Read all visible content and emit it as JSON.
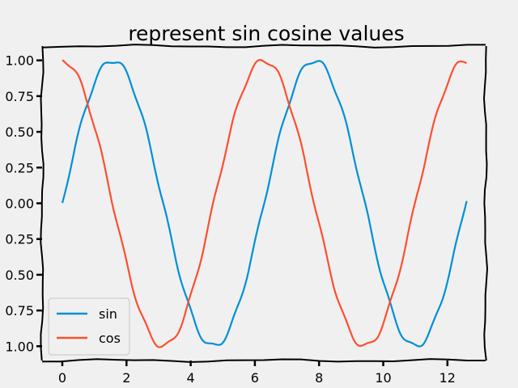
{
  "chart_data": {
    "type": "line",
    "title": "represent sin cosine values",
    "xlabel": "",
    "ylabel": "",
    "xlim": [
      -0.63,
      13.19
    ],
    "ylim": [
      -1.1,
      1.1
    ],
    "x_ticks": [
      "0",
      "2",
      "4",
      "6",
      "8",
      "10",
      "12"
    ],
    "y_ticks": [
      "1.00",
      "0.75",
      "0.50",
      "0.25",
      "0.00",
      "0.25",
      "0.50",
      "0.75",
      "1.00"
    ],
    "grid": false,
    "legend_position": "lower-left",
    "x": {
      "start": 0,
      "stop": 12.6,
      "step": 0.1
    },
    "series": [
      {
        "name": "sin",
        "function": "sin(x)",
        "color": "#008fd5",
        "values_at_x": {
          "0": 0.0,
          "1.57": 1.0,
          "4.71": -1.0,
          "7.85": 1.0,
          "11.0": -1.0,
          "12.5": -0.07
        }
      },
      {
        "name": "cos",
        "function": "cos(x)",
        "color": "#fc4f30",
        "values_at_x": {
          "0": 1.0,
          "3.14": -1.0,
          "6.28": 1.0,
          "9.42": -1.0,
          "12.5": 0.99
        }
      }
    ]
  }
}
